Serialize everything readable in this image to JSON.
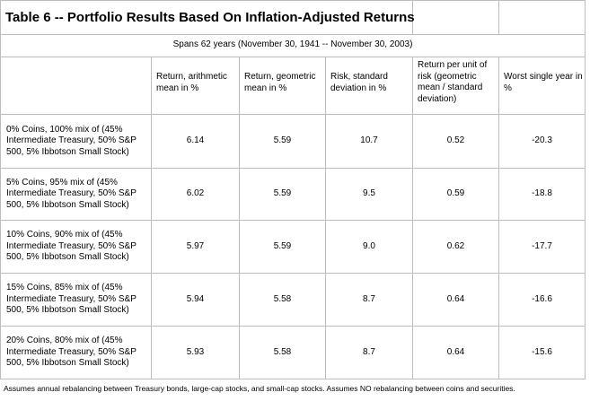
{
  "table": {
    "title": "Table 6 -- Portfolio Results Based On Inflation-Adjusted Returns",
    "span": "Spans 62 years (November 30, 1941 -- November 30, 2003)",
    "columns": [
      "Return, arithmetic mean in %",
      "Return, geometric mean in %",
      "Risk, standard deviation in %",
      "Return per unit of risk (geometric mean / standard deviation)",
      "Worst single year in %"
    ],
    "rows": [
      {
        "label": "0% Coins,   100% mix of (45% Intermediate Treasury, 50% S&P 500, 5% Ibbotson Small Stock)",
        "values": [
          "6.14",
          "5.59",
          "10.7",
          "0.52",
          "-20.3"
        ]
      },
      {
        "label": "5% Coins,   95% mix of (45% Intermediate Treasury, 50% S&P 500, 5% Ibbotson Small Stock)",
        "values": [
          "6.02",
          "5.59",
          "9.5",
          "0.59",
          "-18.8"
        ]
      },
      {
        "label": "10% Coins,   90% mix of (45% Intermediate Treasury, 50% S&P 500, 5% Ibbotson Small Stock)",
        "values": [
          "5.97",
          "5.59",
          "9.0",
          "0.62",
          "-17.7"
        ]
      },
      {
        "label": "15% Coins,   85% mix of (45% Intermediate Treasury, 50% S&P 500, 5% Ibbotson Small Stock)",
        "values": [
          "5.94",
          "5.58",
          "8.7",
          "0.64",
          "-16.6"
        ]
      },
      {
        "label": "20% Coins,   80% mix of (45% Intermediate Treasury, 50% S&P 500, 5% Ibbotson Small Stock)",
        "values": [
          "5.93",
          "5.58",
          "8.7",
          "0.64",
          "-15.6"
        ]
      }
    ],
    "footnote": "Assumes annual rebalancing between Treasury bonds, large-cap stocks, and small-cap stocks.    Assumes NO rebalancing between coins and securities."
  }
}
